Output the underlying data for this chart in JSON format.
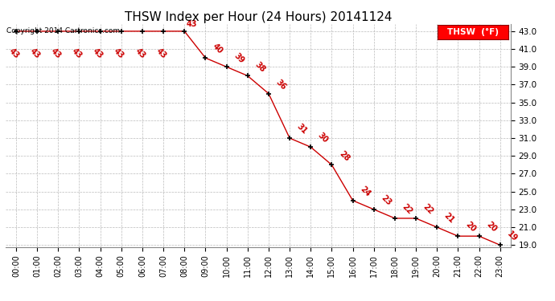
{
  "title": "THSW Index per Hour (24 Hours) 20141124",
  "copyright": "Copyright 2014 Cartronics.com",
  "legend_label": "THSW  (°F)",
  "hours": [
    "00:00",
    "01:00",
    "02:00",
    "03:00",
    "04:00",
    "05:00",
    "06:00",
    "07:00",
    "08:00",
    "09:00",
    "10:00",
    "11:00",
    "12:00",
    "13:00",
    "14:00",
    "15:00",
    "16:00",
    "17:00",
    "18:00",
    "19:00",
    "20:00",
    "21:00",
    "22:00",
    "23:00"
  ],
  "values": [
    43,
    43,
    43,
    43,
    43,
    43,
    43,
    43,
    43,
    40,
    39,
    38,
    36,
    31,
    30,
    28,
    24,
    23,
    22,
    22,
    21,
    20,
    20,
    19
  ],
  "ylim": [
    18.8,
    43.8
  ],
  "yticks": [
    19.0,
    21.0,
    23.0,
    25.0,
    27.0,
    29.0,
    31.0,
    33.0,
    35.0,
    37.0,
    39.0,
    41.0,
    43.0
  ],
  "line_color": "#cc0000",
  "marker_color": "#000000",
  "bg_color": "#ffffff",
  "grid_color": "#bbbbbb",
  "annotation_color": "#cc0000",
  "title_fontsize": 11,
  "annotation_fontsize": 7,
  "copyright_fontsize": 6.5,
  "legend_fontsize": 7.5
}
